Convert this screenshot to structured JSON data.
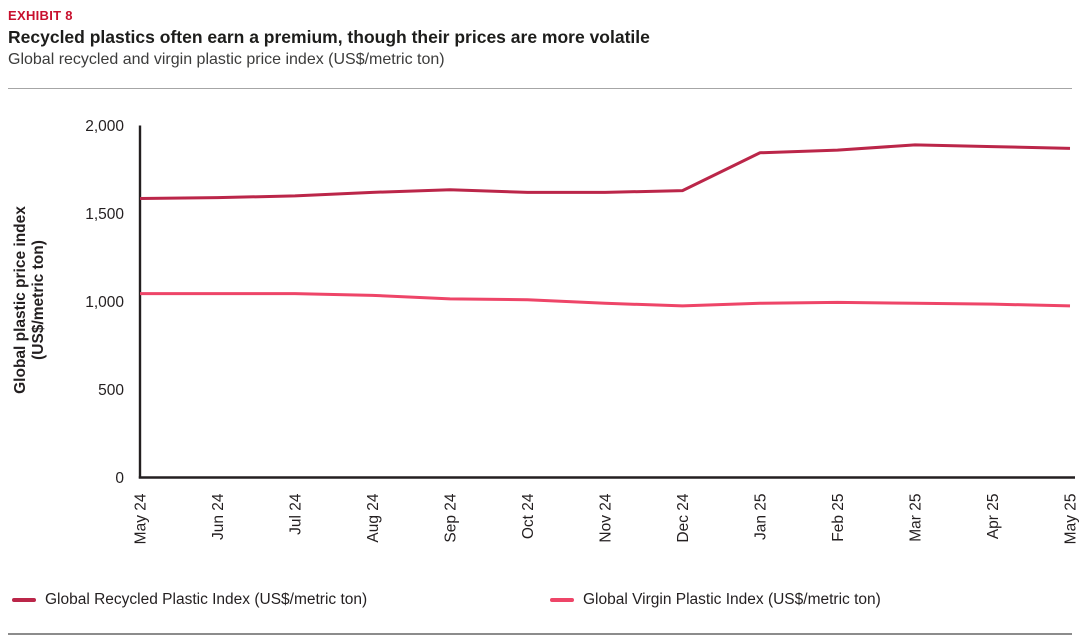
{
  "page": {
    "exhibit_label": "EXHIBIT 8",
    "title": "Recycled plastics often earn a premium, though their prices are more volatile",
    "subtitle": "Global recycled and virgin plastic price index (US$/metric ton)"
  },
  "colors": {
    "exhibit_red": "#c8102e",
    "axis": "#231f20",
    "recycled_line": "#bb2649",
    "virgin_line": "#ee4568",
    "rule_gray": "#a6a6a6"
  },
  "chart_data": {
    "type": "line",
    "title": "Global recycled and virgin plastic price index (US$/metric ton)",
    "xlabel": "",
    "ylabel_lines": [
      "Global plastic price index",
      "(US$/metric ton)"
    ],
    "ylim": [
      0,
      2000
    ],
    "grid": false,
    "legend_position": "bottom",
    "yticks": [
      {
        "label": "0",
        "value": 0
      },
      {
        "label": "500",
        "value": 500
      },
      {
        "label": "1,000",
        "value": 1000
      },
      {
        "label": "1,500",
        "value": 1500
      },
      {
        "label": "2,000",
        "value": 2000
      }
    ],
    "categories": [
      "May 24",
      "Jun 24",
      "Jul 24",
      "Aug 24",
      "Sep 24",
      "Oct 24",
      "Nov 24",
      "Dec 24",
      "Jan 25",
      "Feb 25",
      "Mar 25",
      "Apr 25",
      "May 25"
    ],
    "series": [
      {
        "id": "recycled",
        "name": "Global Recycled Plastic Index (US$/metric ton)",
        "color": "#bb2649",
        "values": [
          1585,
          1590,
          1600,
          1620,
          1635,
          1620,
          1620,
          1630,
          1845,
          1860,
          1890,
          1880,
          1870
        ]
      },
      {
        "id": "virgin",
        "name": "Global Virgin Plastic Index (US$/metric ton)",
        "color": "#ee4568",
        "values": [
          1045,
          1045,
          1045,
          1035,
          1015,
          1010,
          990,
          975,
          990,
          995,
          990,
          985,
          975
        ]
      }
    ]
  }
}
